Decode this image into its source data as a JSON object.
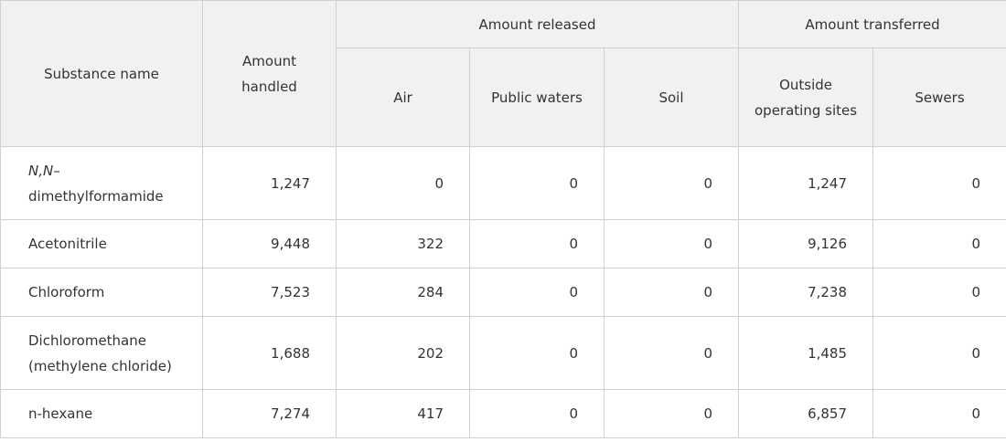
{
  "header": {
    "substance_name": "Substance name",
    "amount_handled": "Amount handled",
    "amount_released": "Amount released",
    "amount_transferred": "Amount transferred",
    "air": "Air",
    "public_waters": "Public waters",
    "soil": "Soil",
    "outside_operating_sites": "Outside operating sites",
    "sewers": "Sewers"
  },
  "rows": [
    {
      "name_italic": "N,N",
      "name": "– dimethylformamide",
      "handled": "1,247",
      "air": "0",
      "public_waters": "0",
      "soil": "0",
      "outside": "1,247",
      "sewers": "0"
    },
    {
      "name": "Acetonitrile",
      "handled": "9,448",
      "air": "322",
      "public_waters": "0",
      "soil": "0",
      "outside": "9,126",
      "sewers": "0"
    },
    {
      "name": "Chloroform",
      "handled": "7,523",
      "air": "284",
      "public_waters": "0",
      "soil": "0",
      "outside": "7,238",
      "sewers": "0"
    },
    {
      "name": "Dichloromethane (methylene chloride)",
      "handled": "1,688",
      "air": "202",
      "public_waters": "0",
      "soil": "0",
      "outside": "1,485",
      "sewers": "0"
    },
    {
      "name": "n-hexane",
      "handled": "7,274",
      "air": "417",
      "public_waters": "0",
      "soil": "0",
      "outside": "6,857",
      "sewers": "0"
    }
  ]
}
